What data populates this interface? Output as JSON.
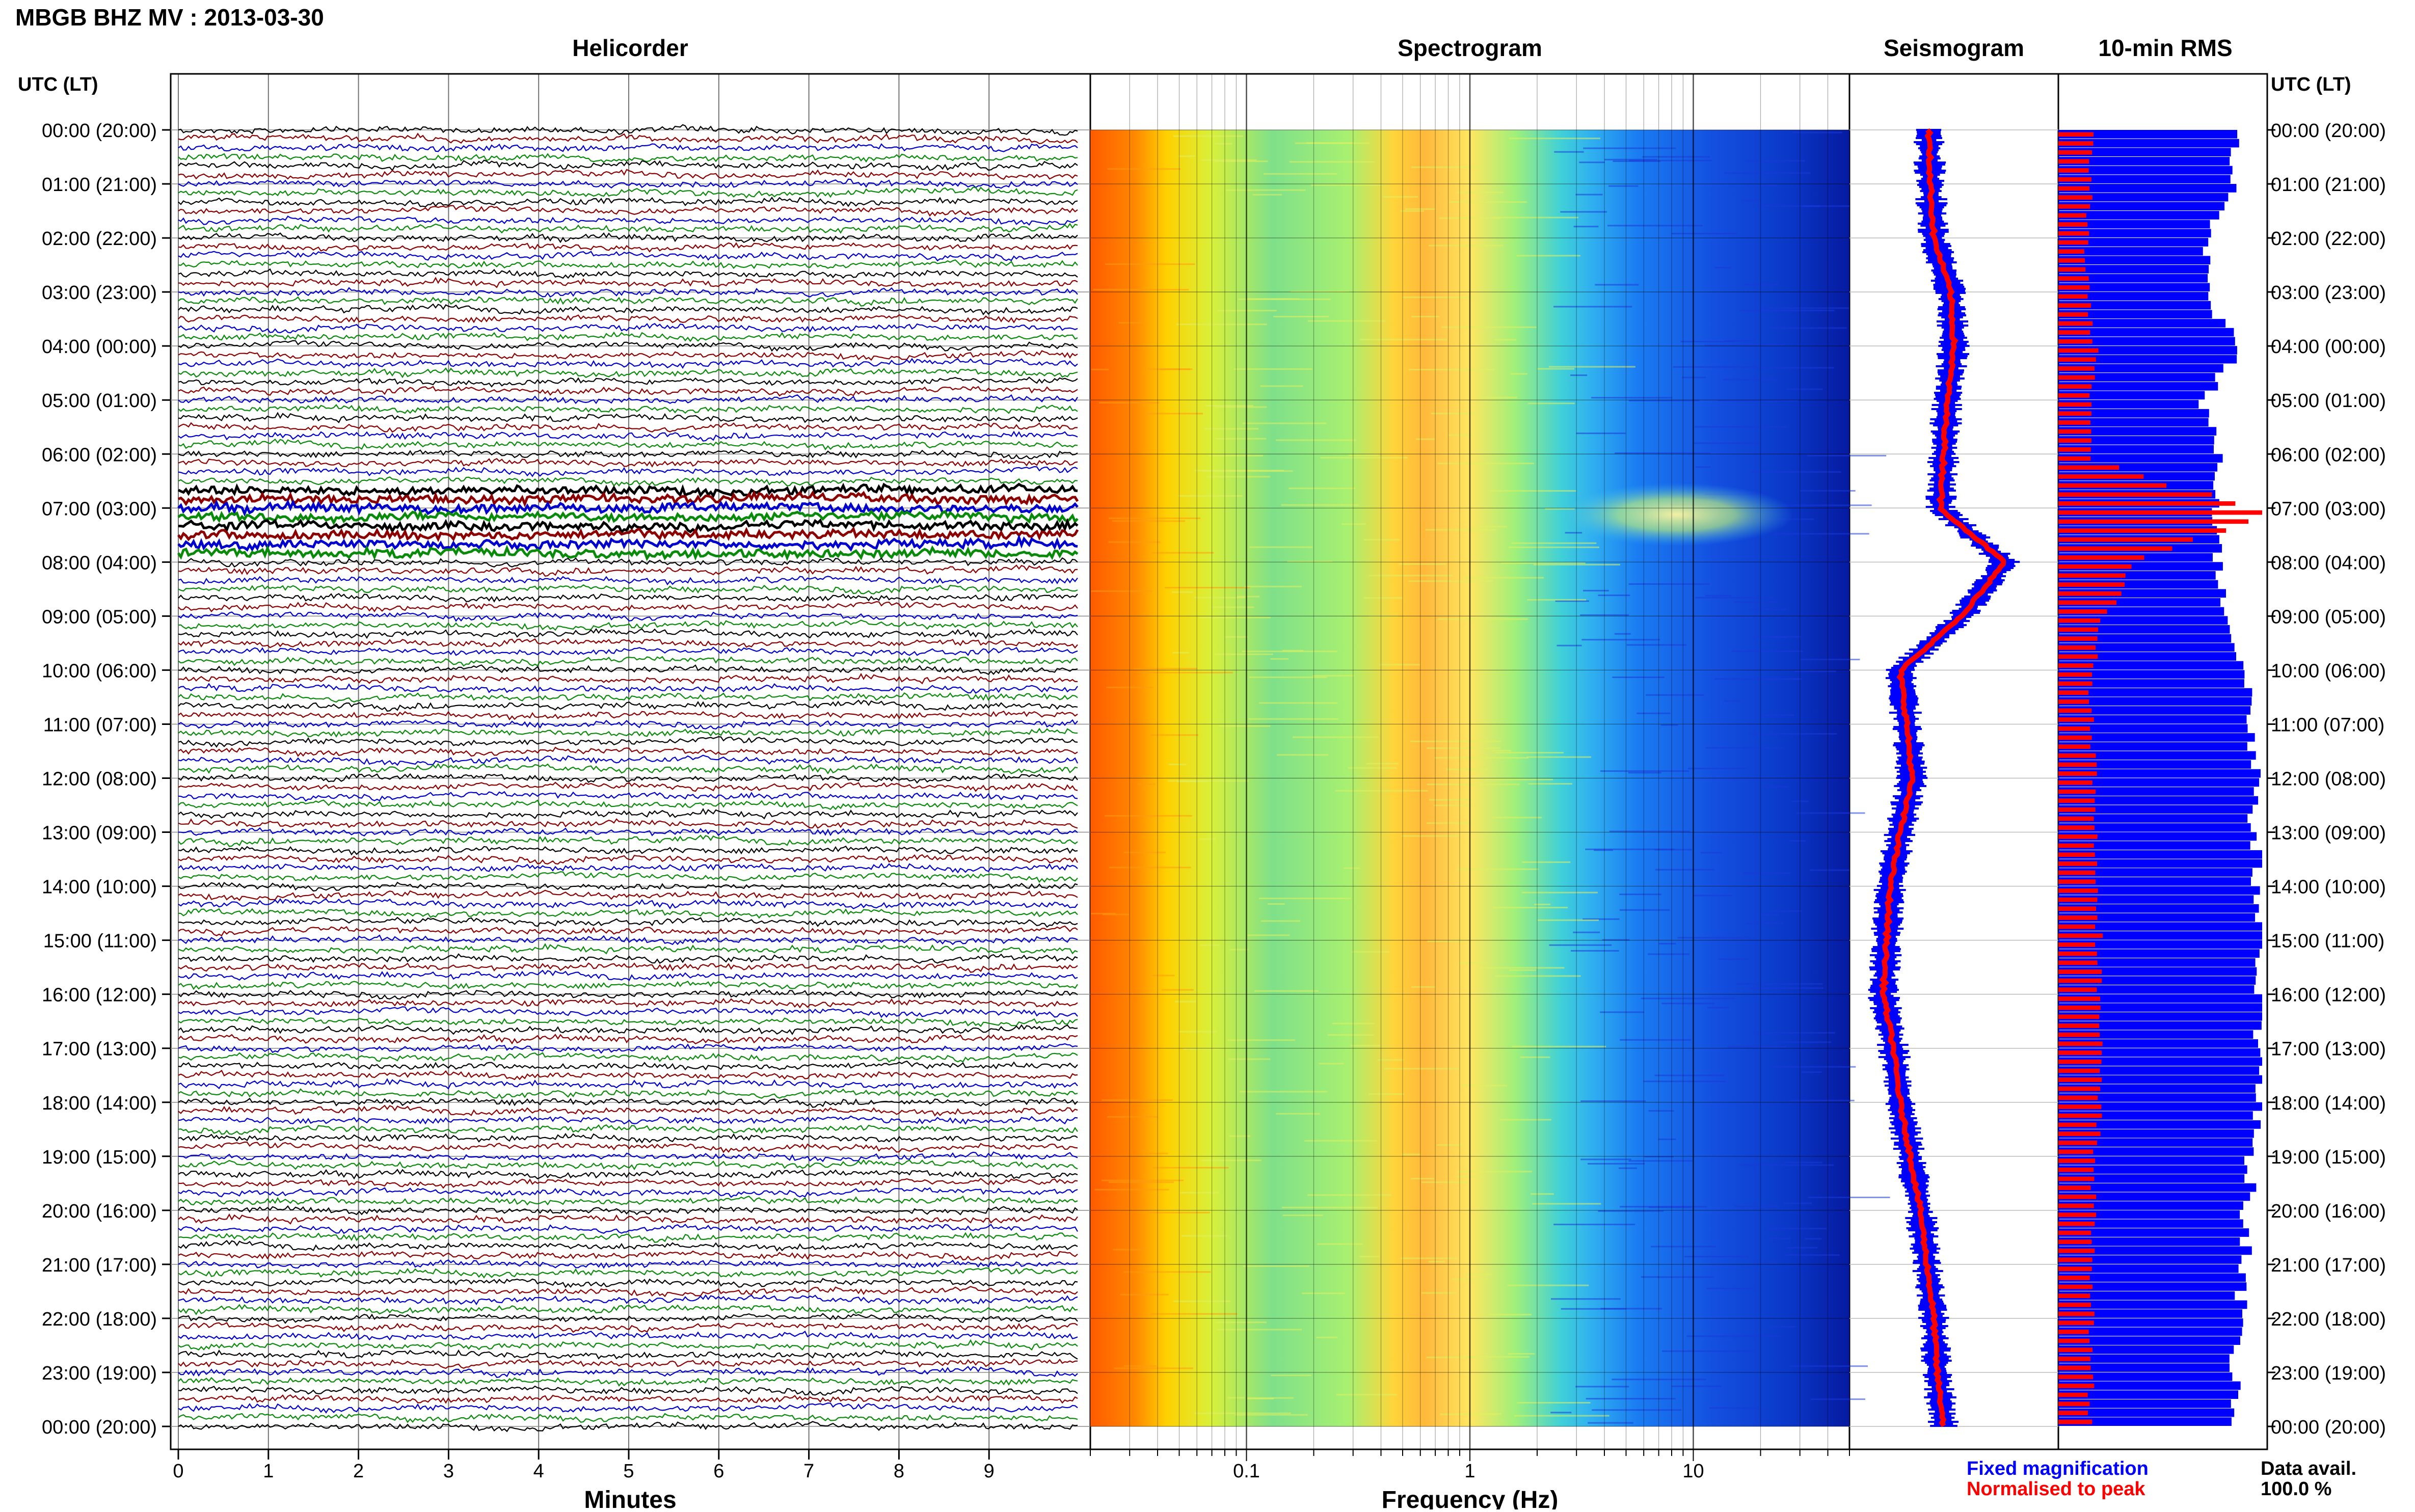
{
  "header": {
    "title": "MBGB BHZ MV : 2013-03-30"
  },
  "panels": {
    "helicorder": "Helicorder",
    "spectrogram": "Spectrogram",
    "seismogram": "Seismogram",
    "rms": "10-min RMS"
  },
  "axis": {
    "time_label": "UTC (LT)",
    "minutes_label": "Minutes",
    "frequency_label": "Frequency (Hz)"
  },
  "legend": {
    "fixed": "Fixed magnification",
    "normalised": "Normalised to peak",
    "fixed_color": "#0000ff",
    "normalised_color": "#ff0000"
  },
  "availability": {
    "label": "Data avail.",
    "value": "100.0 %"
  },
  "colors": {
    "trace_cycle": [
      "#000000",
      "#8b0000",
      "#0000cd",
      "#0a8a0a"
    ],
    "rms_fixed": "#0000ff",
    "rms_norm": "#ff0000"
  },
  "chart_data": [
    {
      "type": "line",
      "panel": "Helicorder",
      "xlabel": "Minutes",
      "xlim": [
        0,
        10
      ],
      "x_ticks": [
        "0",
        "1",
        "2",
        "3",
        "4",
        "5",
        "6",
        "7",
        "8",
        "9"
      ],
      "y_ticks": [
        "00:00 (20:00)",
        "01:00 (21:00)",
        "02:00 (22:00)",
        "03:00 (23:00)",
        "04:00 (00:00)",
        "05:00 (01:00)",
        "06:00 (02:00)",
        "07:00 (03:00)",
        "08:00 (04:00)",
        "09:00 (05:00)",
        "10:00 (06:00)",
        "11:00 (07:00)",
        "12:00 (08:00)",
        "13:00 (09:00)",
        "14:00 (10:00)",
        "15:00 (11:00)",
        "16:00 (12:00)",
        "17:00 (13:00)",
        "18:00 (14:00)",
        "19:00 (15:00)",
        "20:00 (16:00)",
        "21:00 (17:00)",
        "22:00 (18:00)",
        "23:00 (19:00)",
        "00:00 (20:00)"
      ],
      "traces_per_hour": 6,
      "elevated_hours": [
        7,
        8
      ],
      "grid": true
    },
    {
      "type": "heatmap",
      "panel": "Spectrogram",
      "xlabel": "Frequency (Hz)",
      "x_scale": "log",
      "xlim": [
        0.02,
        50
      ],
      "x_ticks": [
        "0.1",
        "1",
        "10"
      ],
      "colormap": "jet",
      "notes": "low frequencies (<0.05 Hz) red/orange, peak near 0.3 Hz yellow-orange, >2 Hz dark blue; strong broadband energy 3–15 Hz around 07:00–08:00 UTC"
    },
    {
      "type": "line",
      "panel": "Seismogram",
      "series": [
        {
          "name": "Fixed magnification",
          "color": "#0000ff"
        },
        {
          "name": "Normalised to peak",
          "color": "#ff0000"
        }
      ],
      "hour_levels": [
        0.35,
        0.36,
        0.38,
        0.48,
        0.5,
        0.46,
        0.44,
        0.42,
        0.8,
        0.55,
        0.18,
        0.22,
        0.25,
        0.18,
        0.12,
        0.1,
        0.08,
        0.14,
        0.18,
        0.24,
        0.3,
        0.34,
        0.38,
        0.4,
        0.44
      ]
    },
    {
      "type": "bar",
      "panel": "10-min RMS",
      "orientation": "horizontal",
      "series": [
        {
          "name": "Fixed magnification",
          "color": "#0000ff"
        },
        {
          "name": "Normalised to peak",
          "color": "#ff0000"
        }
      ],
      "hour_levels_fixed": [
        0.86,
        0.85,
        0.72,
        0.72,
        0.9,
        0.7,
        0.8,
        0.78,
        0.78,
        0.84,
        0.92,
        0.95,
        0.97,
        0.96,
        0.98,
        1.0,
        1.0,
        0.99,
        0.98,
        0.95,
        0.92,
        0.92,
        0.88,
        0.86,
        0.86
      ],
      "hour_levels_normalised": [
        0.16,
        0.16,
        0.14,
        0.14,
        0.18,
        0.15,
        0.16,
        1.0,
        0.35,
        0.22,
        0.16,
        0.17,
        0.18,
        0.18,
        0.2,
        0.2,
        0.2,
        0.2,
        0.2,
        0.18,
        0.17,
        0.17,
        0.16,
        0.16,
        0.16
      ]
    }
  ]
}
